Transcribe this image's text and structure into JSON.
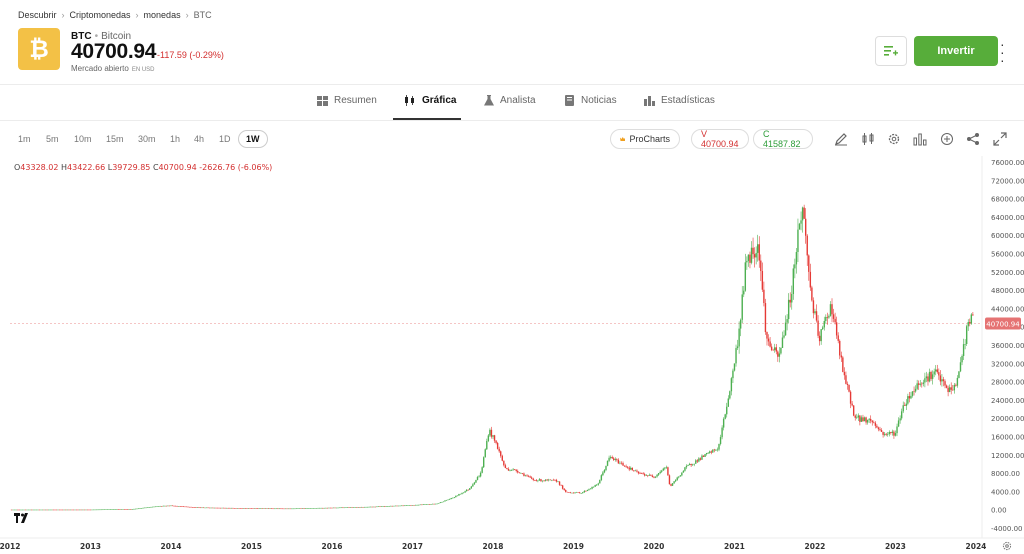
{
  "breadcrumb": [
    "Descubrir",
    "Criptomonedas",
    "monedas",
    "BTC"
  ],
  "asset": {
    "symbol": "BTC",
    "name": "Bitcoin",
    "price": "40700.94",
    "change": "-117.59 (-0.29%)",
    "market_status": "Mercado abierto",
    "currency": "EN USD",
    "logo_glyph": "₿"
  },
  "buttons": {
    "invest": "Invertir"
  },
  "tabs": [
    {
      "label": "Resumen",
      "icon": "grid-icon"
    },
    {
      "label": "Gráfica",
      "icon": "candles-icon",
      "active": true
    },
    {
      "label": "Analista",
      "icon": "flask-icon"
    },
    {
      "label": "Noticias",
      "icon": "news-icon"
    },
    {
      "label": "Estadísticas",
      "icon": "bars-icon"
    }
  ],
  "timeframes": [
    "1m",
    "5m",
    "10m",
    "15m",
    "30m",
    "1h",
    "4h",
    "1D",
    "1W"
  ],
  "active_timeframe": "1W",
  "toolbar": {
    "procharts": "ProCharts",
    "sell": "V 40700.94",
    "buy": "C 41587.82"
  },
  "ohlc": {
    "o": "43328.02",
    "h": "43422.66",
    "l": "39729.85",
    "c": "40700.94",
    "chg": "-2626.76 (-6.06%)"
  },
  "colors": {
    "up": "#4caf50",
    "down": "#e53935",
    "accent": "#57ad3a",
    "price_tag": "#e57373"
  },
  "chart_data": {
    "type": "candlestick",
    "last_price": 40700.94,
    "last_price_label": "40700.94",
    "ylim": [
      -4000,
      76000
    ],
    "yticks": [
      76000,
      72000,
      68000,
      64000,
      60000,
      56000,
      52000,
      48000,
      44000,
      40000,
      36000,
      32000,
      28000,
      24000,
      20000,
      16000,
      12000,
      8000,
      4000,
      0,
      -4000
    ],
    "ytick_labels": [
      "76000.00",
      "72000.00",
      "68000.00",
      "64000.00",
      "60000.00",
      "56000.00",
      "52000.00",
      "48000.00",
      "44000.00",
      "40000.00",
      "36000.00",
      "32000.00",
      "28000.00",
      "24000.00",
      "20000.00",
      "16000.00",
      "12000.00",
      "8000.00",
      "4000.00",
      "0.00",
      "-4000.00"
    ],
    "x_labels": [
      "2012",
      "2013",
      "2014",
      "2015",
      "2016",
      "2017",
      "2018",
      "2019",
      "2020",
      "2021",
      "2022",
      "2023",
      "2024"
    ],
    "x_years": [
      2012,
      2013,
      2014,
      2015,
      2016,
      2017,
      2018,
      2019,
      2020,
      2021,
      2022,
      2023,
      2024
    ],
    "xlim": [
      2012.0,
      2024.05
    ],
    "price_path": [
      [
        2012.0,
        5
      ],
      [
        2013.0,
        13
      ],
      [
        2013.3,
        100
      ],
      [
        2013.5,
        90
      ],
      [
        2013.85,
        800
      ],
      [
        2014.0,
        900
      ],
      [
        2014.3,
        500
      ],
      [
        2015.0,
        300
      ],
      [
        2015.5,
        250
      ],
      [
        2016.0,
        430
      ],
      [
        2016.5,
        650
      ],
      [
        2017.0,
        1000
      ],
      [
        2017.3,
        1300
      ],
      [
        2017.5,
        2600
      ],
      [
        2017.7,
        4500
      ],
      [
        2017.85,
        8000
      ],
      [
        2017.95,
        17500
      ],
      [
        2018.05,
        14000
      ],
      [
        2018.15,
        9000
      ],
      [
        2018.3,
        8500
      ],
      [
        2018.5,
        6500
      ],
      [
        2018.8,
        6300
      ],
      [
        2018.9,
        3800
      ],
      [
        2019.1,
        3700
      ],
      [
        2019.3,
        5500
      ],
      [
        2019.45,
        11500
      ],
      [
        2019.6,
        10000
      ],
      [
        2019.8,
        8000
      ],
      [
        2020.0,
        7200
      ],
      [
        2020.15,
        9500
      ],
      [
        2020.2,
        5000
      ],
      [
        2020.4,
        9300
      ],
      [
        2020.6,
        11500
      ],
      [
        2020.8,
        13500
      ],
      [
        2020.95,
        27000
      ],
      [
        2021.05,
        38000
      ],
      [
        2021.15,
        55000
      ],
      [
        2021.3,
        58000
      ],
      [
        2021.4,
        37000
      ],
      [
        2021.55,
        33000
      ],
      [
        2021.7,
        47000
      ],
      [
        2021.8,
        62000
      ],
      [
        2021.85,
        66000
      ],
      [
        2021.95,
        47000
      ],
      [
        2022.05,
        37000
      ],
      [
        2022.2,
        45000
      ],
      [
        2022.35,
        30000
      ],
      [
        2022.5,
        20000
      ],
      [
        2022.7,
        19500
      ],
      [
        2022.85,
        16500
      ],
      [
        2023.0,
        16800
      ],
      [
        2023.1,
        23000
      ],
      [
        2023.3,
        28000
      ],
      [
        2023.5,
        30000
      ],
      [
        2023.65,
        26000
      ],
      [
        2023.75,
        27000
      ],
      [
        2023.85,
        36000
      ],
      [
        2023.92,
        42000
      ],
      [
        2023.98,
        40700
      ]
    ]
  }
}
